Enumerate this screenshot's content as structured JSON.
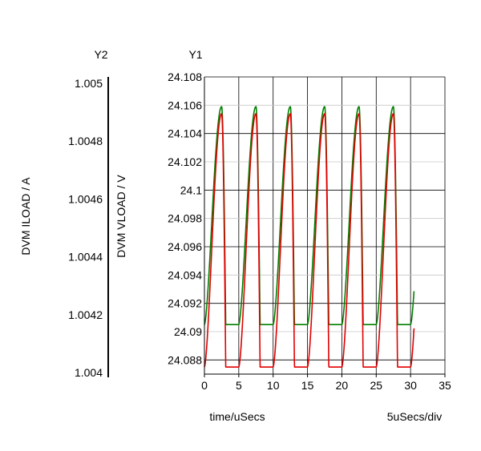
{
  "chart_data": {
    "type": "line",
    "xlabel": "time/uSecs",
    "x_scale_label": "5uSecs/div",
    "x_ticks": [
      "0",
      "5",
      "10",
      "15",
      "20",
      "25",
      "30",
      "35"
    ],
    "xlim": [
      0,
      35
    ],
    "y1": {
      "axis_title": "Y1",
      "label": "DVM VLOAD / V",
      "ylim": [
        24.087,
        24.108
      ],
      "ticks": [
        "24.108",
        "24.106",
        "24.104",
        "24.102",
        "24.1",
        "24.098",
        "24.096",
        "24.094",
        "24.092",
        "24.09",
        "24.088"
      ]
    },
    "y2": {
      "axis_title": "Y2",
      "label": "DVM ILOAD / A",
      "ticks": [
        "1.005",
        "1.0048",
        "1.0046",
        "1.0044",
        "1.0042",
        "1.004"
      ]
    },
    "grid": true,
    "period_us": 5,
    "x_end_us": 30.5,
    "series": [
      {
        "axis": "y1",
        "color": "#008000",
        "min": 24.0905,
        "max": 24.1059
      },
      {
        "axis": "y2",
        "color": "#e00000",
        "min": 24.0875,
        "max": 24.1054
      }
    ]
  }
}
